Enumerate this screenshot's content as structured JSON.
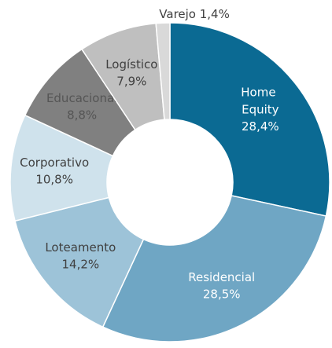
{
  "chart_data": {
    "type": "donut",
    "categories": [
      "Home Equity",
      "Residencial",
      "Loteamento",
      "Corporativo",
      "Educacional",
      "Logístico",
      "Varejo"
    ],
    "values": [
      28.4,
      28.5,
      14.2,
      10.8,
      8.8,
      7.9,
      1.4
    ],
    "value_labels": [
      "28,4%",
      "28,5%",
      "14,2%",
      "10,8%",
      "8,8%",
      "7,9%",
      "1,4%"
    ],
    "colors": [
      "#0b6a93",
      "#6fa6c4",
      "#9dc3d8",
      "#cfe2ec",
      "#808080",
      "#bfbfbf",
      "#d9d9d9"
    ],
    "label_colors": [
      "#ffffff",
      "#ffffff",
      "#404040",
      "#404040",
      "#555555",
      "#404040",
      "#404040"
    ]
  }
}
